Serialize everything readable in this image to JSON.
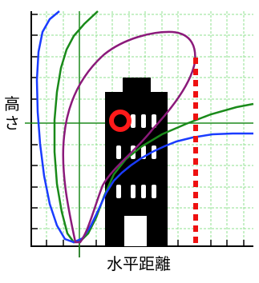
{
  "labels": {
    "vertical_chars": [
      "高",
      "さ"
    ],
    "horizontal": "水平距離"
  },
  "colors": {
    "background": "#ffffff",
    "grid": "#8fe08f",
    "axis": "#000000",
    "crosshair": "#1d8a1d",
    "curve_blue": "#1a3cff",
    "curve_green": "#1a8a1a",
    "curve_purple": "#8b1a7a",
    "building": "#000000",
    "window": "#ffffff",
    "source_ring": "#ff1a1a",
    "boundary_line": "#ee1111"
  },
  "icons": {
    "building": "building-icon",
    "source": "emission-source-icon"
  }
}
